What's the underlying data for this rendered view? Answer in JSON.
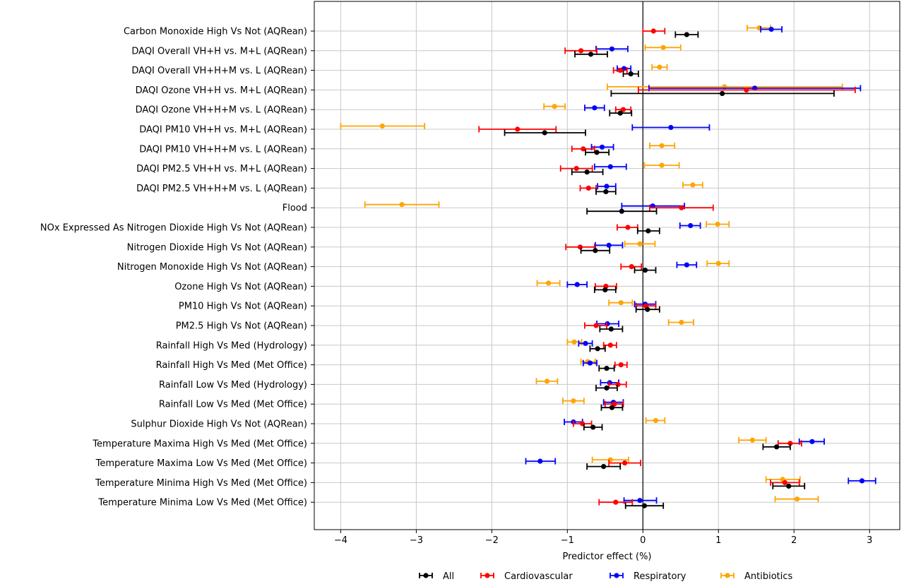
{
  "chart_data": {
    "type": "forest",
    "xlabel": "Predictor effect (%)",
    "xlim": [
      -4.35,
      3.4
    ],
    "xticks": [
      -4,
      -3,
      -2,
      -1,
      0,
      1,
      2,
      3
    ],
    "xtick_labels": [
      "−4",
      "−3",
      "−2",
      "−1",
      "0",
      "1",
      "2",
      "3"
    ],
    "grid": true,
    "reference_line": 0,
    "legend_placement": "bottom",
    "categories": [
      "Carbon Monoxide High Vs Not (AQRean)",
      "DAQI Overall VH+H vs. M+L (AQRean)",
      "DAQI Overall VH+H+M vs. L (AQRean)",
      "DAQI Ozone VH+H vs. M+L (AQRean)",
      "DAQI Ozone VH+H+M vs. L (AQRean)",
      "DAQI PM10 VH+H vs. M+L (AQRean)",
      "DAQI PM10 VH+H+M vs. L (AQRean)",
      "DAQI PM2.5 VH+H vs. M+L (AQRean)",
      "DAQI PM2.5 VH+H+M vs. L (AQRean)",
      "Flood",
      "NOx Expressed As Nitrogen Dioxide High Vs Not (AQRean)",
      "Nitrogen Dioxide High Vs Not (AQRean)",
      "Nitrogen Monoxide High Vs Not (AQRean)",
      "Ozone High Vs Not (AQRean)",
      "PM10 High Vs Not (AQRean)",
      "PM2.5 High Vs Not (AQRean)",
      "Rainfall High Vs Med (Hydrology)",
      "Rainfall High Vs Med (Met Office)",
      "Rainfall Low Vs Med (Hydrology)",
      "Rainfall Low Vs Med (Met Office)",
      "Sulphur Dioxide High Vs Not (AQRean)",
      "Temperature Maxima High Vs Med (Met Office)",
      "Temperature Maxima Low Vs Med (Met Office)",
      "Temperature Minima High Vs Med (Met Office)",
      "Temperature Minima Low Vs Med (Met Office)"
    ],
    "series": [
      {
        "name": "All",
        "color": "#000000",
        "values": [
          {
            "est": 0.58,
            "lo": 0.43,
            "hi": 0.73
          },
          {
            "est": -0.69,
            "lo": -0.9,
            "hi": -0.47
          },
          {
            "est": -0.16,
            "lo": -0.26,
            "hi": -0.06
          },
          {
            "est": 1.05,
            "lo": -0.42,
            "hi": 2.53
          },
          {
            "est": -0.3,
            "lo": -0.44,
            "hi": -0.15
          },
          {
            "est": -1.3,
            "lo": -1.83,
            "hi": -0.76
          },
          {
            "est": -0.61,
            "lo": -0.76,
            "hi": -0.45
          },
          {
            "est": -0.74,
            "lo": -0.94,
            "hi": -0.53
          },
          {
            "est": -0.49,
            "lo": -0.62,
            "hi": -0.36
          },
          {
            "est": -0.28,
            "lo": -0.74,
            "hi": 0.18
          },
          {
            "est": 0.07,
            "lo": -0.07,
            "hi": 0.22
          },
          {
            "est": -0.63,
            "lo": -0.82,
            "hi": -0.44
          },
          {
            "est": 0.03,
            "lo": -0.11,
            "hi": 0.17
          },
          {
            "est": -0.5,
            "lo": -0.64,
            "hi": -0.36
          },
          {
            "est": 0.06,
            "lo": -0.09,
            "hi": 0.22
          },
          {
            "est": -0.42,
            "lo": -0.57,
            "hi": -0.27
          },
          {
            "est": -0.6,
            "lo": -0.7,
            "hi": -0.5
          },
          {
            "est": -0.48,
            "lo": -0.58,
            "hi": -0.38
          },
          {
            "est": -0.48,
            "lo": -0.62,
            "hi": -0.34
          },
          {
            "est": -0.41,
            "lo": -0.55,
            "hi": -0.27
          },
          {
            "est": -0.66,
            "lo": -0.78,
            "hi": -0.54
          },
          {
            "est": 1.77,
            "lo": 1.59,
            "hi": 1.95
          },
          {
            "est": -0.52,
            "lo": -0.74,
            "hi": -0.3
          },
          {
            "est": 1.93,
            "lo": 1.72,
            "hi": 2.14
          },
          {
            "est": 0.02,
            "lo": -0.23,
            "hi": 0.27
          }
        ]
      },
      {
        "name": "Cardiovascular",
        "color": "#ff0000",
        "values": [
          {
            "est": 0.14,
            "lo": 0.0,
            "hi": 0.29
          },
          {
            "est": -0.82,
            "lo": -1.03,
            "hi": -0.61
          },
          {
            "est": -0.3,
            "lo": -0.39,
            "hi": -0.21
          },
          {
            "est": 1.37,
            "lo": -0.06,
            "hi": 2.81
          },
          {
            "est": -0.26,
            "lo": -0.36,
            "hi": -0.16
          },
          {
            "est": -1.66,
            "lo": -2.17,
            "hi": -1.15
          },
          {
            "est": -0.79,
            "lo": -0.94,
            "hi": -0.64
          },
          {
            "est": -0.88,
            "lo": -1.09,
            "hi": -0.67
          },
          {
            "est": -0.72,
            "lo": -0.83,
            "hi": -0.62
          },
          {
            "est": 0.51,
            "lo": 0.09,
            "hi": 0.93
          },
          {
            "est": -0.2,
            "lo": -0.34,
            "hi": -0.07
          },
          {
            "est": -0.83,
            "lo": -1.02,
            "hi": -0.64
          },
          {
            "est": -0.15,
            "lo": -0.29,
            "hi": -0.02
          },
          {
            "est": -0.49,
            "lo": -0.63,
            "hi": -0.35
          },
          {
            "est": 0.04,
            "lo": -0.09,
            "hi": 0.17
          },
          {
            "est": -0.62,
            "lo": -0.77,
            "hi": -0.48
          },
          {
            "est": -0.43,
            "lo": -0.52,
            "hi": -0.35
          },
          {
            "est": -0.29,
            "lo": -0.37,
            "hi": -0.21
          },
          {
            "est": -0.33,
            "lo": -0.45,
            "hi": -0.22
          },
          {
            "est": -0.38,
            "lo": -0.5,
            "hi": -0.26
          },
          {
            "est": -0.8,
            "lo": -0.92,
            "hi": -0.68
          },
          {
            "est": 1.95,
            "lo": 1.79,
            "hi": 2.1
          },
          {
            "est": -0.24,
            "lo": -0.45,
            "hi": -0.03
          },
          {
            "est": 1.88,
            "lo": 1.69,
            "hi": 2.07
          },
          {
            "est": -0.36,
            "lo": -0.58,
            "hi": -0.14
          }
        ]
      },
      {
        "name": "Respiratory",
        "color": "#0000ff",
        "values": [
          {
            "est": 1.7,
            "lo": 1.56,
            "hi": 1.84
          },
          {
            "est": -0.41,
            "lo": -0.62,
            "hi": -0.2
          },
          {
            "est": -0.25,
            "lo": -0.34,
            "hi": -0.16
          },
          {
            "est": 1.48,
            "lo": 0.08,
            "hi": 2.88
          },
          {
            "est": -0.64,
            "lo": -0.77,
            "hi": -0.51
          },
          {
            "est": 0.37,
            "lo": -0.14,
            "hi": 0.88
          },
          {
            "est": -0.54,
            "lo": -0.68,
            "hi": -0.39
          },
          {
            "est": -0.43,
            "lo": -0.64,
            "hi": -0.22
          },
          {
            "est": -0.48,
            "lo": -0.6,
            "hi": -0.36
          },
          {
            "est": 0.13,
            "lo": -0.28,
            "hi": 0.55
          },
          {
            "est": 0.63,
            "lo": 0.49,
            "hi": 0.76
          },
          {
            "est": -0.45,
            "lo": -0.63,
            "hi": -0.27
          },
          {
            "est": 0.58,
            "lo": 0.45,
            "hi": 0.71
          },
          {
            "est": -0.87,
            "lo": -1.0,
            "hi": -0.74
          },
          {
            "est": 0.03,
            "lo": -0.11,
            "hi": 0.17
          },
          {
            "est": -0.47,
            "lo": -0.61,
            "hi": -0.32
          },
          {
            "est": -0.76,
            "lo": -0.85,
            "hi": -0.67
          },
          {
            "est": -0.7,
            "lo": -0.79,
            "hi": -0.61
          },
          {
            "est": -0.44,
            "lo": -0.56,
            "hi": -0.32
          },
          {
            "est": -0.39,
            "lo": -0.52,
            "hi": -0.26
          },
          {
            "est": -0.92,
            "lo": -1.04,
            "hi": -0.8
          },
          {
            "est": 2.24,
            "lo": 2.07,
            "hi": 2.4
          },
          {
            "est": -1.36,
            "lo": -1.55,
            "hi": -1.16
          },
          {
            "est": 2.9,
            "lo": 2.72,
            "hi": 3.08
          },
          {
            "est": -0.04,
            "lo": -0.25,
            "hi": 0.18
          }
        ]
      },
      {
        "name": "Antibiotics",
        "color": "#ffa500",
        "values": [
          {
            "est": 1.54,
            "lo": 1.38,
            "hi": 1.69
          },
          {
            "est": 0.27,
            "lo": 0.03,
            "hi": 0.5
          },
          {
            "est": 0.22,
            "lo": 0.12,
            "hi": 0.32
          },
          {
            "est": 1.08,
            "lo": -0.47,
            "hi": 2.64
          },
          {
            "est": -1.17,
            "lo": -1.31,
            "hi": -1.03
          },
          {
            "est": -3.45,
            "lo": -4.0,
            "hi": -2.89
          },
          {
            "est": 0.25,
            "lo": 0.09,
            "hi": 0.42
          },
          {
            "est": 0.25,
            "lo": 0.02,
            "hi": 0.48
          },
          {
            "est": 0.66,
            "lo": 0.53,
            "hi": 0.79
          },
          {
            "est": -3.19,
            "lo": -3.68,
            "hi": -2.7
          },
          {
            "est": 0.99,
            "lo": 0.84,
            "hi": 1.14
          },
          {
            "est": -0.04,
            "lo": -0.24,
            "hi": 0.16
          },
          {
            "est": 1.0,
            "lo": 0.85,
            "hi": 1.14
          },
          {
            "est": -1.25,
            "lo": -1.4,
            "hi": -1.1
          },
          {
            "est": -0.29,
            "lo": -0.45,
            "hi": -0.14
          },
          {
            "est": 0.51,
            "lo": 0.34,
            "hi": 0.67
          },
          {
            "est": -0.91,
            "lo": -1.0,
            "hi": -0.81
          },
          {
            "est": -0.73,
            "lo": -0.82,
            "hi": -0.63
          },
          {
            "est": -1.27,
            "lo": -1.41,
            "hi": -1.13
          },
          {
            "est": -0.92,
            "lo": -1.06,
            "hi": -0.78
          },
          {
            "est": 0.17,
            "lo": 0.04,
            "hi": 0.29
          },
          {
            "est": 1.45,
            "lo": 1.27,
            "hi": 1.63
          },
          {
            "est": -0.43,
            "lo": -0.67,
            "hi": -0.19
          },
          {
            "est": 1.85,
            "lo": 1.63,
            "hi": 2.08
          },
          {
            "est": 2.04,
            "lo": 1.75,
            "hi": 2.32
          }
        ]
      }
    ]
  }
}
